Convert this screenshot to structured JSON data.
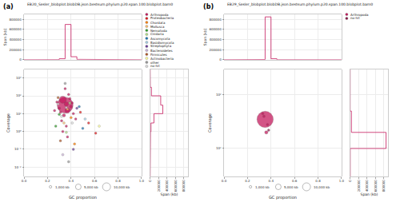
{
  "chart_data": [
    {
      "type": "scatter",
      "label": "(a)",
      "title": "EB20_Sesler_blobplot.blobDB.json.bestsum.phylum.p20.span.100.blobplot.bam0",
      "x_label": "GC proportion",
      "y_label": "Coverage",
      "log": "y",
      "grid": true,
      "xlim": [
        0,
        1
      ],
      "xticks": [
        {
          "value": 0,
          "label": "0.0"
        },
        {
          "value": 0.2,
          "label": "0.2"
        },
        {
          "value": 0.4,
          "label": "0.4"
        },
        {
          "value": 0.6,
          "label": "0.6"
        },
        {
          "value": 0.8,
          "label": "0.8"
        },
        {
          "value": 1,
          "label": "1.0"
        }
      ],
      "ylim": [
        0.003,
        3000
      ],
      "yticks": [
        {
          "value": 0.01,
          "label": "10⁻²"
        },
        {
          "value": 0.1,
          "label": "10⁻¹"
        },
        {
          "value": 1,
          "label": "10⁰"
        },
        {
          "value": 10,
          "label": "10¹"
        },
        {
          "value": 100,
          "label": "10²"
        },
        {
          "value": 1000,
          "label": "10³"
        }
      ],
      "series": [
        {
          "name": "Arthropoda",
          "color": "#c51b5e",
          "x": [
            0.35,
            0.33,
            0.37,
            0.36,
            0.34,
            0.3,
            0.4,
            0.38,
            0.32,
            0.42,
            0.28,
            0.36,
            0.35,
            0.31,
            0.39,
            0.44,
            0.33,
            0.37,
            0.26,
            0.41
          ],
          "y": [
            30,
            60,
            15,
            35,
            8,
            20,
            25,
            120,
            4,
            10,
            45,
            2,
            250,
            12,
            70,
            5,
            1,
            0.5,
            15,
            40
          ],
          "size": [
            20000,
            4000,
            2000,
            1500,
            800,
            600,
            700,
            400,
            300,
            250,
            200,
            200,
            150,
            150,
            150,
            100,
            100,
            80,
            80,
            100
          ]
        },
        {
          "name": "Proteobacteria",
          "color": "#e31a1c",
          "x": [
            0.55,
            0.61,
            0.48
          ],
          "y": [
            3,
            0.8,
            12
          ],
          "size": [
            100,
            60,
            80
          ]
        },
        {
          "name": "Chordata",
          "color": "#ff7f00",
          "x": [
            0.4,
            0.43
          ],
          "y": [
            6,
            0.2
          ],
          "size": [
            120,
            50
          ]
        },
        {
          "name": "Mollusca",
          "color": "#fdbf6f",
          "x": [
            0.37,
            0.34
          ],
          "y": [
            18,
            3
          ],
          "size": [
            90,
            60
          ]
        },
        {
          "name": "Nematoda",
          "color": "#33a02c",
          "x": [
            0.3,
            0.27
          ],
          "y": [
            9,
            2
          ],
          "size": [
            80,
            50
          ]
        },
        {
          "name": "Cnidaria",
          "color": "#b2df8a",
          "x": [
            0.36,
            0.39
          ],
          "y": [
            0.9,
            40
          ],
          "size": [
            60,
            70
          ]
        },
        {
          "name": "Ascomycota",
          "color": "#1f78b4",
          "x": [
            0.5,
            0.47
          ],
          "y": [
            1.5,
            25
          ],
          "size": [
            70,
            60
          ]
        },
        {
          "name": "Basidiomycota",
          "color": "#a6cee3",
          "x": [
            0.52
          ],
          "y": [
            5
          ],
          "size": [
            50
          ]
        },
        {
          "name": "Streptophyta",
          "color": "#6a3d9a",
          "x": [
            0.42,
            0.45
          ],
          "y": [
            0.1,
            20
          ],
          "size": [
            50,
            60
          ]
        },
        {
          "name": "Bacteroidetes",
          "color": "#cab2d6",
          "x": [
            0.33
          ],
          "y": [
            0.05
          ],
          "size": [
            40
          ]
        },
        {
          "name": "Firmicutes",
          "color": "#b15928",
          "x": [
            0.31,
            0.29
          ],
          "y": [
            0.3,
            80
          ],
          "size": [
            40,
            50
          ]
        },
        {
          "name": "Actinobacteria",
          "color": "#ffff99",
          "x": [
            0.64
          ],
          "y": [
            2
          ],
          "size": [
            40
          ]
        },
        {
          "name": "other",
          "color": "#999999",
          "x": [
            0.38,
            0.35
          ],
          "y": [
            0.02,
            500
          ],
          "size": [
            40,
            50
          ]
        },
        {
          "name": "no-hit",
          "color": "#dddddd",
          "x": [
            0.32,
            0.36,
            0.41,
            0.29
          ],
          "y": [
            7,
            22,
            3,
            35
          ],
          "size": [
            300,
            250,
            150,
            100
          ]
        }
      ],
      "top_hist": {
        "y_label": "Span (kb)",
        "color": "#c51b5e",
        "bins": [
          0,
          0.05,
          0.1,
          0.15,
          0.2,
          0.25,
          0.3,
          0.35,
          0.4,
          0.45,
          0.5,
          0.55,
          0.6,
          0.65,
          0.7,
          0.75,
          0.8,
          0.85,
          0.9,
          0.95,
          1
        ],
        "values": [
          0,
          0,
          0,
          0,
          500,
          2000,
          20000,
          700000,
          60000,
          8000,
          3000,
          1500,
          800,
          400,
          200,
          100,
          0,
          0,
          0,
          0
        ],
        "ylim": [
          0,
          900000
        ],
        "yticks": [
          0,
          200000,
          400000,
          600000,
          800000
        ]
      },
      "right_hist": {
        "x_label": "Span (kb)",
        "color": "#c51b5e",
        "bins": [
          0.003,
          0.01,
          0.03,
          0.1,
          0.3,
          1,
          3,
          10,
          30,
          100,
          300,
          1000,
          3000
        ],
        "values": [
          200,
          500,
          1500,
          4000,
          8000,
          20000,
          90000,
          300000,
          250000,
          30000,
          4000,
          800
        ],
        "xlim": [
          0,
          900000
        ],
        "xticks": [
          0,
          200000,
          400000,
          600000,
          800000
        ]
      },
      "size_legend": [
        {
          "value": 1000,
          "label": "1,000 kb"
        },
        {
          "value": 5000,
          "label": "5,000 kb"
        },
        {
          "value": 10000,
          "label": "10,000 kb"
        }
      ]
    },
    {
      "type": "scatter",
      "label": "(b)",
      "title": "EB29_Sesler_blobplot.blobDB.json.bestsum.phylum.p20.span.100.blobplot.bam0",
      "x_label": "GC proportion",
      "y_label": "Coverage",
      "log": "y",
      "grid": true,
      "xlim": [
        0,
        1
      ],
      "xticks": [
        {
          "value": 0,
          "label": "0.0"
        },
        {
          "value": 0.2,
          "label": "0.2"
        },
        {
          "value": 0.4,
          "label": "0.4"
        },
        {
          "value": 0.6,
          "label": "0.6"
        },
        {
          "value": 0.8,
          "label": "0.8"
        },
        {
          "value": 1,
          "label": "1.0"
        }
      ],
      "ylim": [
        3,
        300
      ],
      "yticks": [
        {
          "value": 10,
          "label": "10¹"
        },
        {
          "value": 100,
          "label": "10²"
        }
      ],
      "series": [
        {
          "name": "Arthropoda",
          "color": "#c51b5e",
          "x": [
            0.35,
            0.36,
            0.34,
            0.37,
            0.33
          ],
          "y": [
            35,
            20,
            40,
            28,
            45
          ],
          "size": [
            21000,
            900,
            500,
            300,
            200
          ]
        },
        {
          "name": "no-hit",
          "color": "#8b1a4a",
          "x": [
            0.38
          ],
          "y": [
            22
          ],
          "size": [
            60
          ]
        }
      ],
      "top_hist": {
        "y_label": "Span (kb)",
        "color": "#c51b5e",
        "bins": [
          0,
          0.05,
          0.1,
          0.15,
          0.2,
          0.25,
          0.3,
          0.35,
          0.4,
          0.45,
          0.5,
          0.55,
          0.6,
          0.65,
          0.7,
          0.75,
          0.8,
          0.85,
          0.9,
          0.95,
          1
        ],
        "values": [
          0,
          0,
          0,
          0,
          0,
          0,
          5000,
          850000,
          20000,
          500,
          0,
          0,
          0,
          0,
          0,
          0,
          0,
          0,
          0,
          0
        ],
        "ylim": [
          0,
          900000
        ],
        "yticks": [
          0,
          200000,
          400000,
          600000,
          800000
        ]
      },
      "right_hist": {
        "x_label": "Span (kb)",
        "color": "#c51b5e",
        "bins": [
          3,
          10,
          20,
          50,
          100,
          300
        ],
        "values": [
          2000,
          850000,
          30000,
          0,
          0
        ],
        "xlim": [
          0,
          900000
        ],
        "xticks": [
          0,
          200000,
          400000,
          600000,
          800000
        ]
      },
      "size_legend": [
        {
          "value": 1000,
          "label": "1,000 kb"
        },
        {
          "value": 5000,
          "label": "5,000 kb"
        },
        {
          "value": 10000,
          "label": "10,000 kb"
        }
      ]
    }
  ]
}
